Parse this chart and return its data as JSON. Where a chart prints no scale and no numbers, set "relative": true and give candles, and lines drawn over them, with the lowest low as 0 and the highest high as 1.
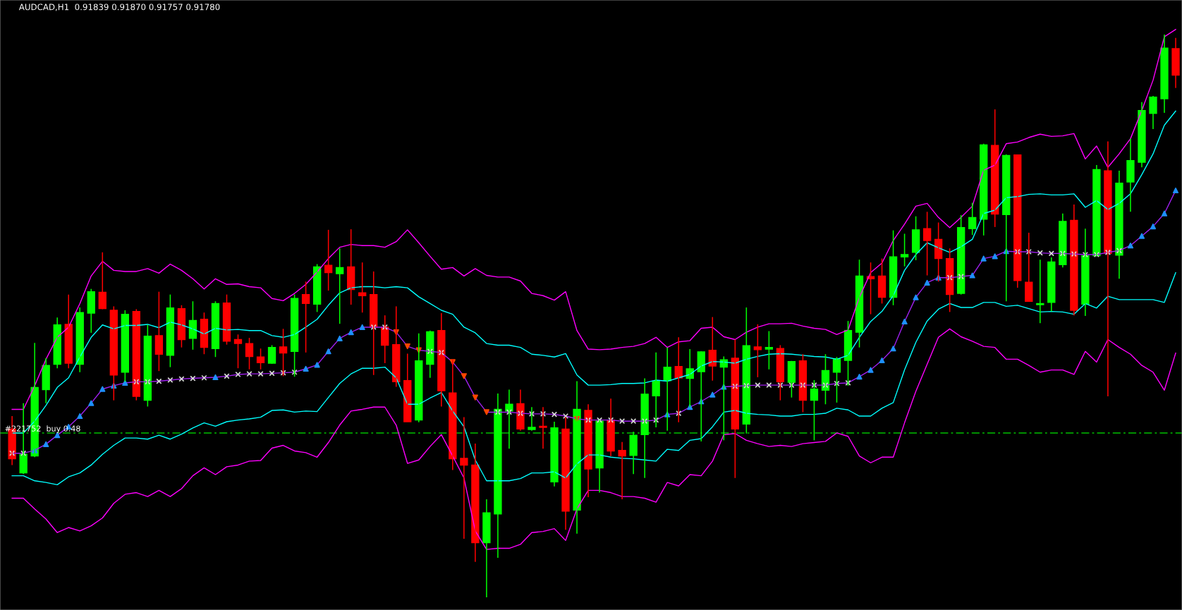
{
  "chart_data": {
    "type": "candlestick",
    "title": "AUDCAD,H1  0.91839 0.91870 0.91757 0.91780",
    "relative": true,
    "categories": [
      null,
      null,
      null,
      null,
      null,
      null,
      null,
      null,
      null,
      null,
      null,
      null,
      null,
      null,
      null,
      null,
      null,
      null,
      null,
      null,
      null,
      null,
      null,
      null,
      null,
      null,
      null,
      null,
      null,
      null,
      null,
      null,
      null,
      null,
      null,
      null,
      null,
      null,
      null,
      null,
      null,
      null,
      null,
      null,
      null,
      null,
      null,
      null,
      null,
      null,
      null,
      null,
      null,
      null,
      null,
      null,
      null,
      null,
      null,
      null,
      null,
      null,
      null,
      null,
      null,
      null,
      null,
      null,
      null,
      null,
      null,
      null,
      null,
      null,
      null,
      null,
      null,
      null,
      null,
      null,
      null,
      null,
      null,
      null,
      null,
      null,
      null,
      null,
      null,
      null,
      null,
      null,
      null,
      null,
      null,
      null,
      null,
      null,
      null,
      null,
      null,
      null,
      null,
      null
    ],
    "ohlc": [
      [
        0.299,
        0.322,
        0.235,
        0.246
      ],
      [
        0.221,
        0.345,
        0.219,
        0.254
      ],
      [
        0.251,
        0.452,
        0.249,
        0.373
      ],
      [
        0.369,
        0.425,
        0.345,
        0.412
      ],
      [
        0.414,
        0.497,
        0.407,
        0.484
      ],
      [
        0.485,
        0.538,
        0.407,
        0.416
      ],
      [
        0.414,
        0.515,
        0.4,
        0.506
      ],
      [
        0.505,
        0.548,
        0.47,
        0.543
      ],
      [
        0.542,
        0.613,
        0.512,
        0.513
      ],
      [
        0.51,
        0.517,
        0.35,
        0.395
      ],
      [
        0.4,
        0.51,
        0.383,
        0.503
      ],
      [
        0.508,
        0.512,
        0.35,
        0.357
      ],
      [
        0.35,
        0.484,
        0.339,
        0.464
      ],
      [
        0.465,
        0.543,
        0.402,
        0.432
      ],
      [
        0.43,
        0.538,
        0.409,
        0.514
      ],
      [
        0.513,
        0.519,
        0.444,
        0.458
      ],
      [
        0.46,
        0.526,
        0.44,
        0.492
      ],
      [
        0.494,
        0.506,
        0.432,
        0.444
      ],
      [
        0.442,
        0.526,
        0.427,
        0.522
      ],
      [
        0.523,
        0.538,
        0.449,
        0.455
      ],
      [
        0.458,
        0.467,
        0.407,
        0.451
      ],
      [
        0.451,
        0.461,
        0.405,
        0.428
      ],
      [
        0.427,
        0.442,
        0.405,
        0.417
      ],
      [
        0.416,
        0.448,
        0.415,
        0.444
      ],
      [
        0.445,
        0.477,
        0.393,
        0.434
      ],
      [
        0.437,
        0.538,
        0.392,
        0.531
      ],
      [
        0.538,
        0.561,
        0.435,
        0.522
      ],
      [
        0.521,
        0.592,
        0.507,
        0.587
      ],
      [
        0.59,
        0.653,
        0.545,
        0.577
      ],
      [
        0.575,
        0.62,
        0.486,
        0.586
      ],
      [
        0.587,
        0.654,
        0.52,
        0.547
      ],
      [
        0.541,
        0.595,
        0.506,
        0.536
      ],
      [
        0.538,
        0.579,
        0.395,
        0.48
      ],
      [
        0.48,
        0.501,
        0.416,
        0.448
      ],
      [
        0.449,
        0.517,
        0.374,
        0.383
      ],
      [
        0.385,
        0.433,
        0.312,
        0.312
      ],
      [
        0.315,
        0.469,
        0.311,
        0.42
      ],
      [
        0.414,
        0.474,
        0.39,
        0.472
      ],
      [
        0.474,
        0.505,
        0.339,
        0.367
      ],
      [
        0.363,
        0.423,
        0.226,
        0.246
      ],
      [
        0.247,
        0.32,
        0.104,
        0.235
      ],
      [
        0.235,
        0.273,
        0.063,
        0.097
      ],
      [
        0.097,
        0.174,
        0.0,
        0.15
      ],
      [
        0.148,
        0.362,
        0.07,
        0.334
      ],
      [
        0.331,
        0.369,
        0.264,
        0.343
      ],
      [
        0.344,
        0.369,
        0.296,
        0.299
      ],
      [
        0.298,
        0.338,
        0.296,
        0.302
      ],
      [
        0.304,
        0.338,
        0.264,
        0.302
      ],
      [
        0.205,
        0.312,
        0.197,
        0.301
      ],
      [
        0.299,
        0.32,
        0.12,
        0.153
      ],
      [
        0.155,
        0.384,
        0.113,
        0.334
      ],
      [
        0.332,
        0.343,
        0.178,
        0.228
      ],
      [
        0.23,
        0.315,
        0.186,
        0.313
      ],
      [
        0.315,
        0.353,
        0.251,
        0.26
      ],
      [
        0.261,
        0.276,
        0.174,
        0.251
      ],
      [
        0.252,
        0.294,
        0.219,
        0.288
      ],
      [
        0.289,
        0.389,
        0.212,
        0.361
      ],
      [
        0.358,
        0.435,
        0.302,
        0.384
      ],
      [
        0.385,
        0.444,
        0.296,
        0.409
      ],
      [
        0.41,
        0.462,
        0.311,
        0.39
      ],
      [
        0.389,
        0.441,
        0.338,
        0.406
      ],
      [
        0.401,
        0.437,
        0.277,
        0.436
      ],
      [
        0.439,
        0.498,
        0.385,
        0.411
      ],
      [
        0.409,
        0.428,
        0.279,
        0.422
      ],
      [
        0.425,
        0.458,
        0.212,
        0.299
      ],
      [
        0.308,
        0.515,
        0.291,
        0.447
      ],
      [
        0.445,
        0.485,
        0.391,
        0.44
      ],
      [
        0.441,
        0.473,
        0.405,
        0.444
      ],
      [
        0.442,
        0.448,
        0.35,
        0.383
      ],
      [
        0.382,
        0.42,
        0.355,
        0.419
      ],
      [
        0.42,
        0.432,
        0.329,
        0.35
      ],
      [
        0.35,
        0.386,
        0.279,
        0.37
      ],
      [
        0.368,
        0.432,
        0.343,
        0.403
      ],
      [
        0.4,
        0.427,
        0.346,
        0.424
      ],
      [
        0.421,
        0.491,
        0.376,
        0.474
      ],
      [
        0.471,
        0.6,
        0.444,
        0.571
      ],
      [
        0.57,
        0.595,
        0.503,
        0.566
      ],
      [
        0.571,
        0.602,
        0.522,
        0.533
      ],
      [
        0.533,
        0.652,
        0.519,
        0.605
      ],
      [
        0.605,
        0.646,
        0.588,
        0.609
      ],
      [
        0.613,
        0.677,
        0.599,
        0.653
      ],
      [
        0.655,
        0.685,
        0.572,
        0.634
      ],
      [
        0.636,
        0.666,
        0.561,
        0.602
      ],
      [
        0.602,
        0.62,
        0.507,
        0.538
      ],
      [
        0.54,
        0.679,
        0.538,
        0.657
      ],
      [
        0.655,
        0.701,
        0.644,
        0.675
      ],
      [
        0.672,
        0.806,
        0.643,
        0.804
      ],
      [
        0.803,
        0.867,
        0.658,
        0.681
      ],
      [
        0.68,
        0.787,
        0.526,
        0.785
      ],
      [
        0.786,
        0.787,
        0.55,
        0.563
      ],
      [
        0.56,
        0.648,
        0.526,
        0.526
      ],
      [
        0.52,
        0.6,
        0.487,
        0.522
      ],
      [
        0.524,
        0.604,
        0.508,
        0.596
      ],
      [
        0.591,
        0.682,
        0.586,
        0.668
      ],
      [
        0.67,
        0.698,
        0.501,
        0.51
      ],
      [
        0.521,
        0.655,
        0.5,
        0.607
      ],
      [
        0.607,
        0.768,
        0.606,
        0.76
      ],
      [
        0.758,
        0.81,
        0.357,
        0.611
      ],
      [
        0.608,
        0.758,
        0.566,
        0.736
      ],
      [
        0.738,
        0.815,
        0.685,
        0.776
      ],
      [
        0.773,
        0.88,
        0.764,
        0.865
      ],
      [
        0.86,
        0.891,
        0.832,
        0.889
      ],
      [
        0.886,
        1.0,
        0.861,
        0.976
      ],
      [
        0.975,
        0.994,
        0.905,
        0.928
      ]
    ],
    "colors": [
      "#ff0000",
      "#00ff00",
      "#00ff00",
      "#00ff00",
      "#00ff00",
      "#ff0000",
      "#00ff00",
      "#00ff00",
      "#ff0000",
      "#ff0000",
      "#00ff00",
      "#ff0000",
      "#00ff00",
      "#ff0000",
      "#00ff00",
      "#ff0000",
      "#00ff00",
      "#ff0000",
      "#00ff00",
      "#ff0000",
      "#ff0000",
      "#ff0000",
      "#ff0000",
      "#00ff00",
      "#ff0000",
      "#00ff00",
      "#ff0000",
      "#00ff00",
      "#ff0000",
      "#00ff00",
      "#ff0000",
      "#ff0000",
      "#ff0000",
      "#ff0000",
      "#ff0000",
      "#ff0000",
      "#00ff00",
      "#00ff00",
      "#ff0000",
      "#ff0000",
      "#ff0000",
      "#ff0000",
      "#00ff00",
      "#00ff00",
      "#00ff00",
      "#ff0000",
      "#00ff00",
      "#ff0000",
      "#00ff00",
      "#ff0000",
      "#00ff00",
      "#ff0000",
      "#00ff00",
      "#ff0000",
      "#ff0000",
      "#00ff00",
      "#00ff00",
      "#00ff00",
      "#00ff00",
      "#ff0000",
      "#00ff00",
      "#00ff00",
      "#ff0000",
      "#00ff00",
      "#ff0000",
      "#00ff00",
      "#ff0000",
      "#00ff00",
      "#ff0000",
      "#00ff00",
      "#ff0000",
      "#00ff00",
      "#00ff00",
      "#00ff00",
      "#00ff00",
      "#00ff00",
      "#ff0000",
      "#ff0000",
      "#00ff00",
      "#00ff00",
      "#00ff00",
      "#ff0000",
      "#ff0000",
      "#ff0000",
      "#00ff00",
      "#00ff00",
      "#00ff00",
      "#ff0000",
      "#00ff00",
      "#ff0000",
      "#ff0000",
      "#00ff00",
      "#00ff00",
      "#00ff00",
      "#ff0000",
      "#00ff00",
      "#00ff00",
      "#ff0000",
      "#00ff00",
      "#00ff00",
      "#00ff00",
      "#00ff00",
      "#00ff00",
      "#ff0000"
    ],
    "series": [
      {
        "type": "line",
        "color": "#ff00ff",
        "values": [
          0.334,
          0.334,
          0.376,
          0.423,
          0.462,
          0.48,
          0.522,
          0.571,
          0.597,
          0.581,
          0.579,
          0.579,
          0.584,
          0.576,
          0.592,
          0.581,
          0.566,
          0.548,
          0.566,
          0.556,
          0.557,
          0.552,
          0.55,
          0.531,
          0.527,
          0.54,
          0.556,
          0.578,
          0.602,
          0.622,
          0.627,
          0.625,
          0.625,
          0.622,
          0.632,
          0.653,
          0.63,
          0.606,
          0.583,
          0.586,
          0.571,
          0.584,
          0.572,
          0.569,
          0.569,
          0.562,
          0.54,
          0.536,
          0.528,
          0.543,
          0.474,
          0.441,
          0.44,
          0.441,
          0.444,
          0.446,
          0.451,
          0.462,
          0.444,
          0.454,
          0.456,
          0.478,
          0.48,
          0.463,
          0.458,
          0.471,
          0.48,
          0.486,
          0.486,
          0.487,
          0.482,
          0.478,
          0.476,
          0.467,
          0.475,
          0.533,
          0.577,
          0.594,
          0.634,
          0.663,
          0.695,
          0.7,
          0.675,
          0.657,
          0.675,
          0.695,
          0.759,
          0.768,
          0.806,
          0.809,
          0.817,
          0.823,
          0.819,
          0.82,
          0.824,
          0.779,
          0.802,
          0.764,
          0.788,
          0.815,
          0.865,
          0.919,
          0.996,
          1.009
        ]
      },
      {
        "type": "line",
        "color": "#00ffff",
        "values": [
          0.292,
          0.292,
          0.313,
          0.341,
          0.373,
          0.39,
          0.427,
          0.462,
          0.484,
          0.477,
          0.483,
          0.483,
          0.485,
          0.479,
          0.489,
          0.484,
          0.477,
          0.468,
          0.478,
          0.475,
          0.476,
          0.474,
          0.474,
          0.465,
          0.462,
          0.467,
          0.48,
          0.494,
          0.519,
          0.541,
          0.55,
          0.552,
          0.552,
          0.55,
          0.552,
          0.55,
          0.534,
          0.522,
          0.51,
          0.503,
          0.48,
          0.47,
          0.451,
          0.448,
          0.448,
          0.444,
          0.432,
          0.43,
          0.427,
          0.433,
          0.395,
          0.377,
          0.377,
          0.378,
          0.38,
          0.38,
          0.381,
          0.386,
          0.384,
          0.39,
          0.396,
          0.411,
          0.419,
          0.418,
          0.416,
          0.423,
          0.428,
          0.432,
          0.433,
          0.432,
          0.43,
          0.428,
          0.427,
          0.423,
          0.43,
          0.462,
          0.49,
          0.508,
          0.536,
          0.581,
          0.609,
          0.63,
          0.621,
          0.613,
          0.623,
          0.636,
          0.682,
          0.688,
          0.71,
          0.712,
          0.716,
          0.717,
          0.715,
          0.715,
          0.717,
          0.693,
          0.705,
          0.689,
          0.7,
          0.717,
          0.751,
          0.788,
          0.839,
          0.864
        ]
      },
      {
        "type": "line",
        "color": "#a020f0",
        "values": [
          0.256,
          0.256,
          0.261,
          0.272,
          0.288,
          0.303,
          0.322,
          0.345,
          0.37,
          0.376,
          0.381,
          0.383,
          0.383,
          0.384,
          0.386,
          0.388,
          0.389,
          0.39,
          0.391,
          0.393,
          0.396,
          0.397,
          0.397,
          0.398,
          0.399,
          0.4,
          0.406,
          0.413,
          0.437,
          0.46,
          0.471,
          0.48,
          0.48,
          0.48,
          0.471,
          0.446,
          0.439,
          0.437,
          0.435,
          0.418,
          0.393,
          0.355,
          0.329,
          0.329,
          0.329,
          0.327,
          0.326,
          0.326,
          0.325,
          0.322,
          0.317,
          0.315,
          0.315,
          0.315,
          0.313,
          0.313,
          0.313,
          0.315,
          0.325,
          0.327,
          0.338,
          0.348,
          0.36,
          0.374,
          0.375,
          0.376,
          0.377,
          0.377,
          0.377,
          0.377,
          0.377,
          0.377,
          0.377,
          0.38,
          0.381,
          0.392,
          0.404,
          0.421,
          0.442,
          0.49,
          0.533,
          0.559,
          0.568,
          0.568,
          0.57,
          0.572,
          0.602,
          0.606,
          0.615,
          0.614,
          0.614,
          0.612,
          0.611,
          0.611,
          0.61,
          0.609,
          0.609,
          0.613,
          0.616,
          0.625,
          0.642,
          0.659,
          0.682,
          0.723
        ]
      },
      {
        "type": "line",
        "color": "#00ffff",
        "values": [
          0.216,
          0.216,
          0.207,
          0.204,
          0.2,
          0.214,
          0.221,
          0.235,
          0.254,
          0.27,
          0.283,
          0.283,
          0.281,
          0.288,
          0.281,
          0.29,
          0.301,
          0.31,
          0.304,
          0.312,
          0.315,
          0.317,
          0.32,
          0.332,
          0.333,
          0.329,
          0.331,
          0.33,
          0.355,
          0.38,
          0.397,
          0.407,
          0.407,
          0.409,
          0.39,
          0.343,
          0.343,
          0.354,
          0.364,
          0.331,
          0.303,
          0.244,
          0.207,
          0.207,
          0.207,
          0.211,
          0.221,
          0.221,
          0.223,
          0.212,
          0.237,
          0.253,
          0.253,
          0.249,
          0.247,
          0.246,
          0.244,
          0.242,
          0.263,
          0.261,
          0.279,
          0.282,
          0.303,
          0.329,
          0.332,
          0.327,
          0.325,
          0.324,
          0.322,
          0.322,
          0.325,
          0.325,
          0.327,
          0.336,
          0.333,
          0.322,
          0.322,
          0.336,
          0.346,
          0.404,
          0.453,
          0.491,
          0.512,
          0.522,
          0.515,
          0.515,
          0.524,
          0.524,
          0.517,
          0.519,
          0.513,
          0.507,
          0.508,
          0.507,
          0.503,
          0.522,
          0.514,
          0.535,
          0.529,
          0.529,
          0.529,
          0.529,
          0.524,
          0.577
        ]
      },
      {
        "type": "line",
        "color": "#ff00ff",
        "values": [
          0.176,
          0.176,
          0.157,
          0.139,
          0.115,
          0.124,
          0.118,
          0.127,
          0.141,
          0.167,
          0.183,
          0.186,
          0.179,
          0.19,
          0.179,
          0.193,
          0.216,
          0.23,
          0.218,
          0.232,
          0.235,
          0.242,
          0.243,
          0.265,
          0.27,
          0.26,
          0.257,
          0.249,
          0.275,
          0.306,
          0.331,
          0.334,
          0.338,
          0.338,
          0.306,
          0.238,
          0.244,
          0.268,
          0.289,
          0.251,
          0.212,
          0.118,
          0.085,
          0.087,
          0.087,
          0.094,
          0.115,
          0.117,
          0.122,
          0.101,
          0.157,
          0.19,
          0.19,
          0.186,
          0.179,
          0.179,
          0.176,
          0.169,
          0.204,
          0.198,
          0.218,
          0.216,
          0.242,
          0.289,
          0.291,
          0.279,
          0.273,
          0.268,
          0.27,
          0.268,
          0.273,
          0.275,
          0.277,
          0.292,
          0.286,
          0.251,
          0.239,
          0.249,
          0.249,
          0.31,
          0.366,
          0.414,
          0.462,
          0.477,
          0.463,
          0.455,
          0.446,
          0.444,
          0.423,
          0.423,
          0.412,
          0.4,
          0.404,
          0.404,
          0.396,
          0.437,
          0.418,
          0.458,
          0.444,
          0.432,
          0.412,
          0.4,
          0.368,
          0.434
        ]
      },
      {
        "type": "scatter",
        "marker": "triangle",
        "color": "#1e90ff",
        "values": [
          null,
          null,
          0.261,
          0.272,
          0.288,
          0.303,
          0.322,
          0.345,
          0.37,
          0.376,
          0.381,
          null,
          null,
          null,
          null,
          null,
          null,
          null,
          0.391,
          null,
          null,
          null,
          null,
          null,
          null,
          null,
          0.406,
          0.413,
          0.437,
          0.46,
          0.471,
          0.48,
          null,
          null,
          null,
          null,
          null,
          null,
          null,
          null,
          null,
          null,
          null,
          null,
          null,
          null,
          null,
          null,
          null,
          null,
          null,
          null,
          null,
          null,
          null,
          null,
          null,
          null,
          0.325,
          null,
          0.338,
          0.348,
          0.36,
          0.374,
          null,
          null,
          null,
          null,
          null,
          null,
          null,
          null,
          null,
          null,
          null,
          0.392,
          0.404,
          0.421,
          0.442,
          0.49,
          0.533,
          0.559,
          0.568,
          null,
          null,
          0.572,
          0.602,
          0.606,
          0.615,
          null,
          null,
          null,
          null,
          null,
          null,
          null,
          null,
          null,
          null,
          0.625,
          0.642,
          0.659,
          0.682,
          0.723
        ]
      },
      {
        "type": "scatter",
        "marker": "triangle_down",
        "color": "#ff4500",
        "values": [
          null,
          null,
          null,
          null,
          null,
          null,
          null,
          null,
          null,
          null,
          null,
          null,
          null,
          null,
          null,
          null,
          null,
          null,
          null,
          null,
          null,
          null,
          null,
          null,
          null,
          null,
          null,
          null,
          null,
          null,
          null,
          null,
          null,
          null,
          0.471,
          0.446,
          0.439,
          null,
          null,
          0.418,
          0.393,
          0.355,
          0.329,
          null,
          null,
          null,
          null,
          null,
          null,
          null,
          0.317,
          null,
          null,
          null,
          null,
          null,
          null,
          null,
          null,
          null,
          null,
          null,
          null,
          null,
          null,
          null,
          null,
          null,
          null,
          null,
          null,
          null,
          null,
          null,
          null,
          null,
          null,
          null,
          null,
          null,
          null,
          null,
          null,
          null,
          null,
          null,
          null,
          null,
          null,
          null,
          null,
          null,
          null,
          null,
          null,
          null,
          null,
          null,
          null,
          null,
          null,
          null,
          null,
          null
        ]
      },
      {
        "type": "scatter",
        "marker": "cross",
        "color": "#d8d8d8",
        "values": [
          0.256,
          0.256,
          null,
          null,
          null,
          null,
          null,
          null,
          null,
          null,
          null,
          0.383,
          0.383,
          0.384,
          0.386,
          0.388,
          0.389,
          0.39,
          null,
          0.393,
          0.396,
          0.397,
          0.397,
          0.398,
          0.399,
          0.4,
          null,
          null,
          null,
          null,
          null,
          null,
          0.48,
          0.48,
          null,
          null,
          null,
          0.437,
          0.435,
          null,
          null,
          null,
          null,
          0.329,
          0.329,
          0.327,
          0.326,
          0.326,
          0.325,
          0.322,
          null,
          0.315,
          0.315,
          0.315,
          0.313,
          0.313,
          0.313,
          0.315,
          null,
          0.327,
          null,
          null,
          null,
          null,
          0.375,
          0.376,
          0.377,
          0.377,
          0.377,
          0.377,
          0.377,
          0.377,
          0.377,
          0.38,
          0.381,
          null,
          null,
          null,
          null,
          null,
          null,
          null,
          null,
          0.568,
          0.57,
          null,
          null,
          null,
          null,
          0.614,
          0.614,
          0.612,
          0.611,
          0.611,
          0.61,
          0.609,
          0.609,
          0.613,
          0.616,
          null,
          null,
          null,
          null,
          null
        ]
      }
    ],
    "ref_lines": [
      {
        "axis": "y",
        "value": 0.292,
        "label": "#221752  buy 0.48",
        "color": "#00c000",
        "line_style": "dashed"
      }
    ]
  }
}
